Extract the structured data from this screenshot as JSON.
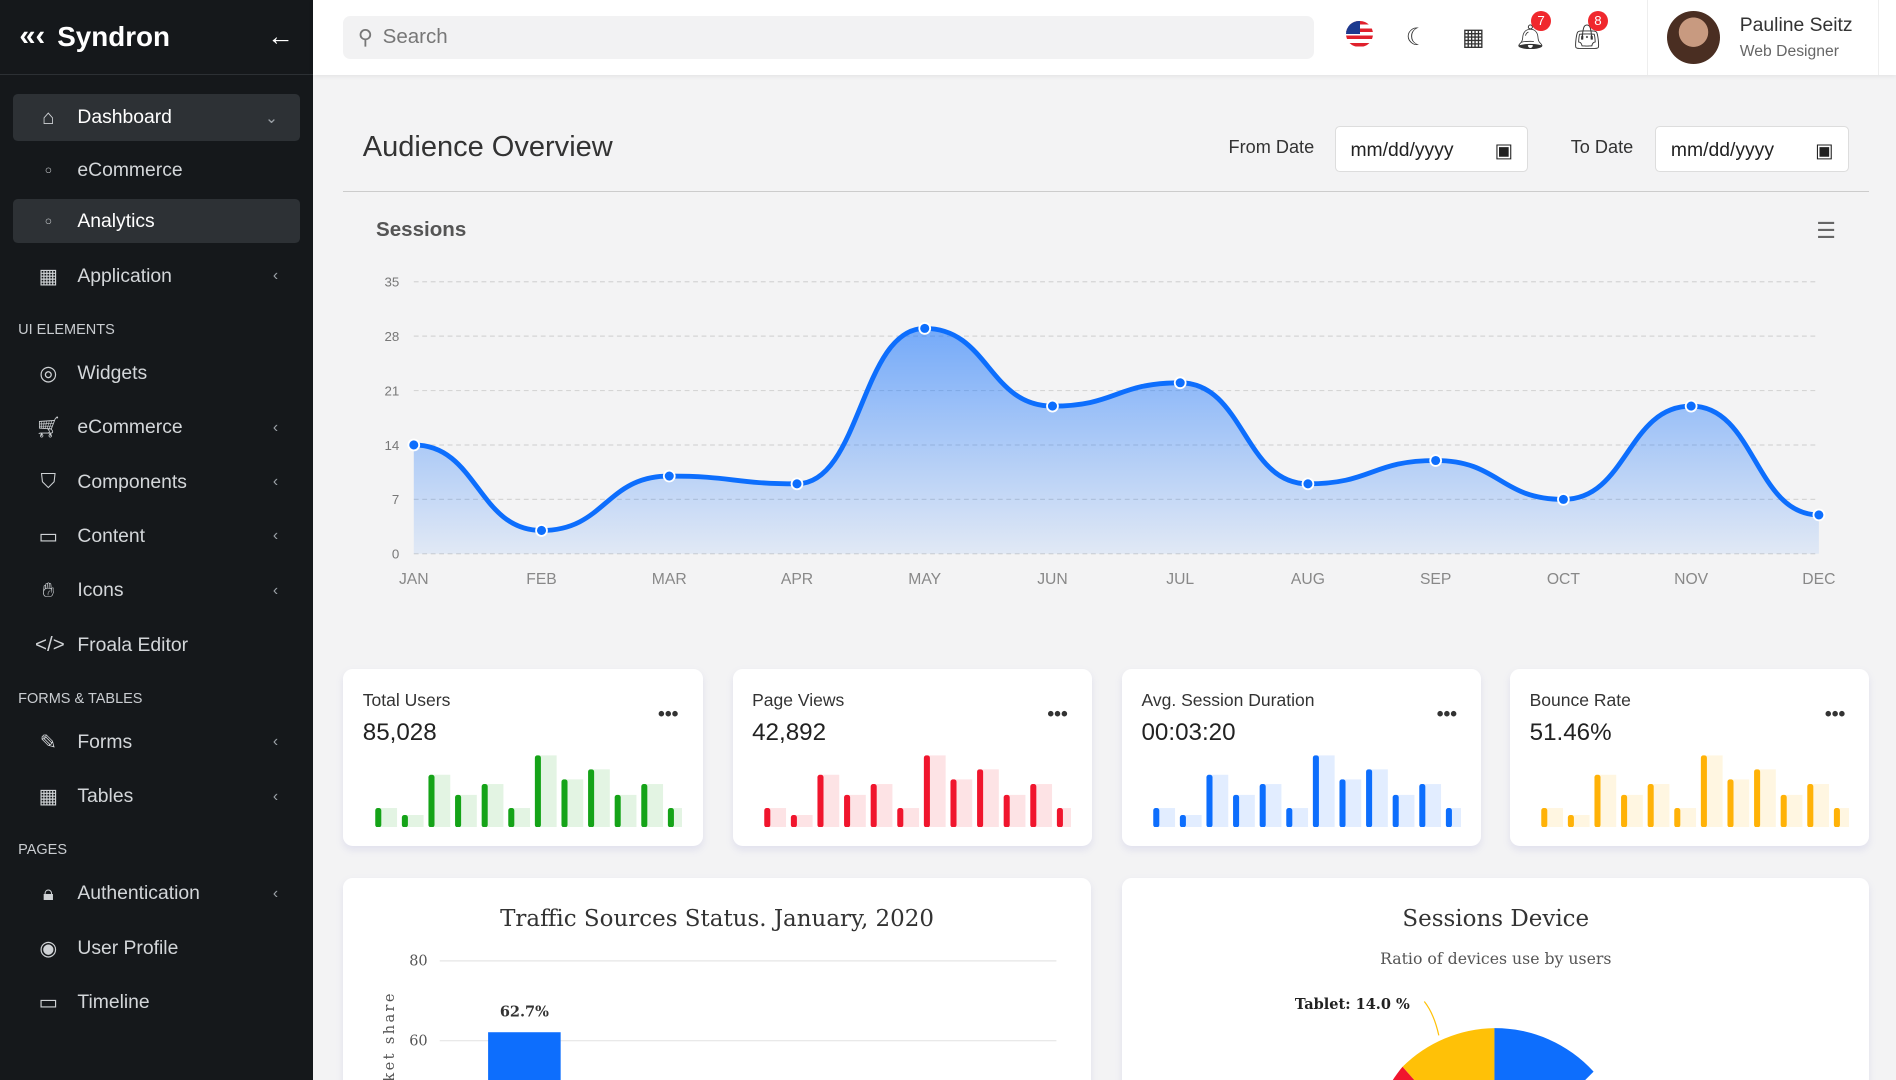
{
  "brand": {
    "name": "Syndron"
  },
  "sidebar": {
    "dashboard": "Dashboard",
    "ecommerce_sub": "eCommerce",
    "analytics": "Analytics",
    "application": "Application",
    "sec_ui": "UI ELEMENTS",
    "widgets": "Widgets",
    "ecommerce": "eCommerce",
    "components": "Components",
    "content": "Content",
    "icons": "Icons",
    "froala": "Froala Editor",
    "sec_forms": "FORMS & TABLES",
    "forms": "Forms",
    "tables": "Tables",
    "sec_pages": "PAGES",
    "auth": "Authentication",
    "profile": "User Profile",
    "timeline": "Timeline"
  },
  "topbar": {
    "search_placeholder": "Search",
    "notifications": "7",
    "cart": "8",
    "user_name": "Pauline Seitz",
    "user_role": "Web Designer"
  },
  "page": {
    "title": "Audience Overview",
    "from_label": "From Date",
    "to_label": "To Date",
    "from_value": "mm/dd/yyyy",
    "to_value": "mm/dd/yyyy"
  },
  "chart_data": [
    {
      "type": "area",
      "title": "Sessions",
      "categories": [
        "JAN",
        "FEB",
        "MAR",
        "APR",
        "MAY",
        "JUN",
        "JUL",
        "AUG",
        "SEP",
        "OCT",
        "NOV",
        "DEC"
      ],
      "values": [
        14,
        3,
        10,
        9,
        29,
        19,
        22,
        9,
        12,
        7,
        19,
        5
      ],
      "yticks": [
        0,
        7,
        14,
        21,
        28,
        35
      ],
      "ylim": [
        0,
        35
      ],
      "color": "#0d6efd"
    },
    {
      "type": "bar",
      "title": "Total Users",
      "value": "85,028",
      "values": [
        25,
        16,
        68,
        42,
        56,
        25,
        93,
        62,
        75,
        42,
        56,
        25
      ],
      "color": "#15a318"
    },
    {
      "type": "bar",
      "title": "Page Views",
      "value": "42,892",
      "values": [
        25,
        16,
        68,
        42,
        56,
        25,
        93,
        62,
        75,
        42,
        56,
        25
      ],
      "color": "#f0152d"
    },
    {
      "type": "bar",
      "title": "Avg. Session Duration",
      "value": "00:03:20",
      "values": [
        25,
        16,
        68,
        42,
        56,
        25,
        93,
        62,
        75,
        42,
        56,
        25
      ],
      "color": "#0d6efd"
    },
    {
      "type": "bar",
      "title": "Bounce Rate",
      "value": "51.46%",
      "values": [
        25,
        16,
        68,
        42,
        56,
        25,
        93,
        62,
        75,
        42,
        56,
        25
      ],
      "color": "#ffb207"
    },
    {
      "type": "bar",
      "title": "Traffic Sources Status. January, 2020",
      "ylabel": "Market share",
      "yticks": [
        60,
        80
      ],
      "data_labels": [
        "62.7%"
      ],
      "values": [
        62.7
      ],
      "color": "#0d6efd"
    },
    {
      "type": "pie",
      "title": "Sessions Device",
      "subtitle": "Ratio of devices use by users",
      "labels": [
        "Tablet: 14.0 %"
      ],
      "values": [
        14.0
      ],
      "colors": [
        "#ffc107",
        "#0d6efd",
        "#f0152d"
      ]
    }
  ]
}
